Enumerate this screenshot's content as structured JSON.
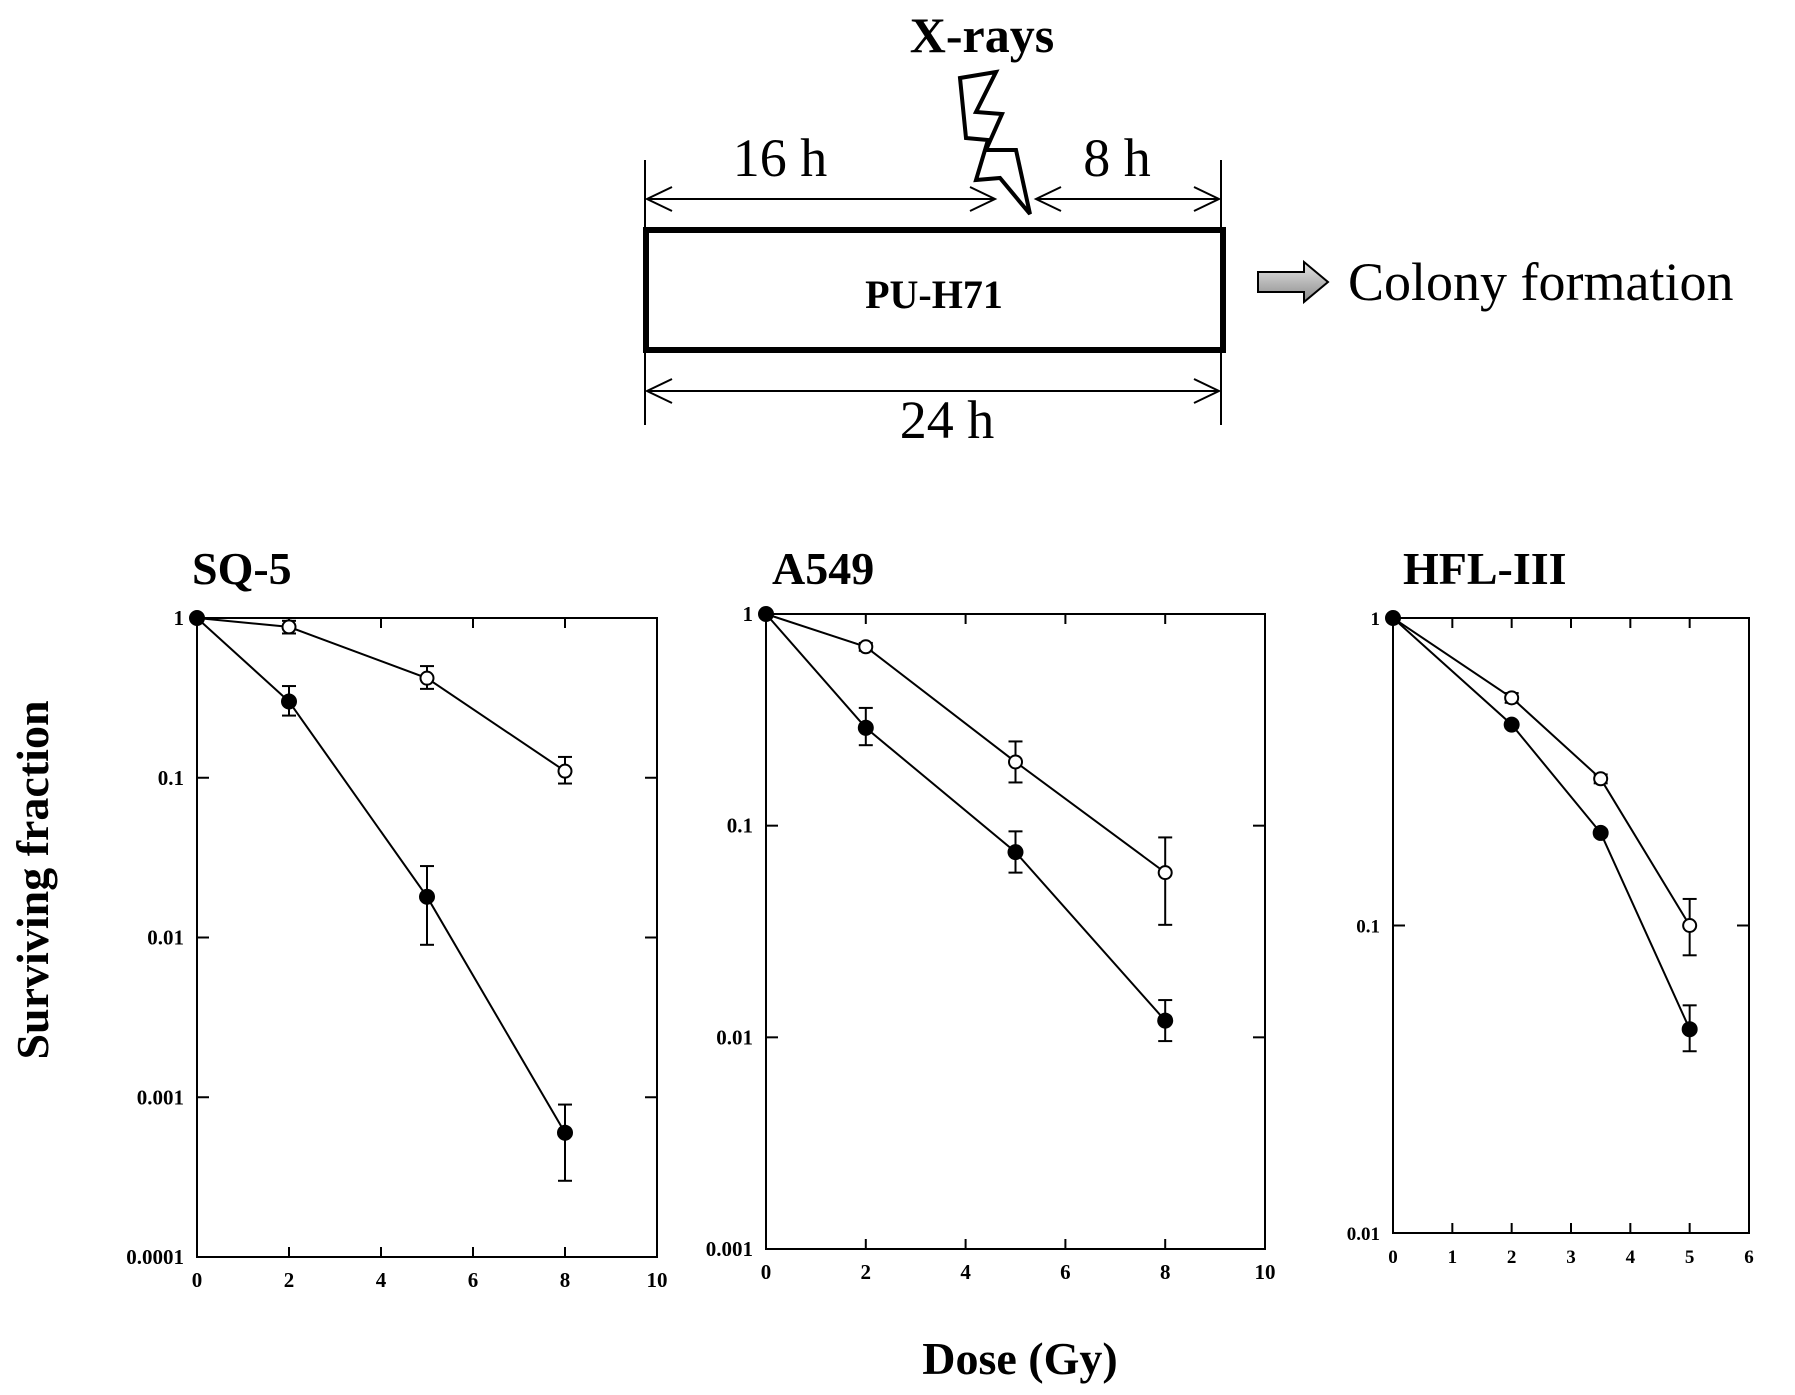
{
  "schematic": {
    "xrays_label": "X-rays",
    "pre_label": "16 h",
    "post_label": "8 h",
    "drug_label": "PU-H71",
    "total_label": "24 h",
    "outcome_label": "Colony formation"
  },
  "figure": {
    "ylabel": "Surviving fraction",
    "xlabel": "Dose (Gy)"
  },
  "chart_data": [
    {
      "type": "scatter",
      "title": "SQ-5",
      "xlabel": "Dose (Gy)",
      "ylabel": "Surviving fraction",
      "yscale": "log",
      "xlim": [
        0,
        10
      ],
      "ylim": [
        0.0001,
        1
      ],
      "xticks": [
        "0",
        "2",
        "4",
        "6",
        "8",
        "10"
      ],
      "yticks": [
        "1",
        "0.1",
        "0.01",
        "0.001",
        "0.0001"
      ],
      "series": [
        {
          "marker": "open-circle",
          "x": [
            0,
            2,
            5,
            8
          ],
          "y": [
            1,
            0.88,
            0.42,
            0.11
          ],
          "err_lo": [
            1,
            0.8,
            0.36,
            0.092
          ],
          "err_hi": [
            1,
            0.96,
            0.5,
            0.135
          ]
        },
        {
          "marker": "filled-circle",
          "x": [
            0,
            2,
            5,
            8
          ],
          "y": [
            1,
            0.3,
            0.018,
            0.0006
          ],
          "err_lo": [
            1,
            0.245,
            0.009,
            0.0003
          ],
          "err_hi": [
            1,
            0.375,
            0.028,
            0.0009
          ]
        }
      ]
    },
    {
      "type": "scatter",
      "title": "A549",
      "xlabel": "Dose (Gy)",
      "ylabel": "Surviving fraction",
      "yscale": "log",
      "xlim": [
        0,
        10
      ],
      "ylim": [
        0.001,
        1
      ],
      "xticks": [
        "0",
        "2",
        "4",
        "6",
        "8",
        "10"
      ],
      "yticks": [
        "1",
        "0.1",
        "0.01",
        "0.001"
      ],
      "series": [
        {
          "marker": "open-circle",
          "x": [
            0,
            2,
            5,
            8
          ],
          "y": [
            1,
            0.7,
            0.2,
            0.06
          ],
          "err_lo": [
            1,
            0.67,
            0.16,
            0.034
          ],
          "err_hi": [
            1,
            0.73,
            0.25,
            0.088
          ]
        },
        {
          "marker": "filled-circle",
          "x": [
            0,
            2,
            5,
            8
          ],
          "y": [
            1,
            0.29,
            0.075,
            0.012
          ],
          "err_lo": [
            1,
            0.24,
            0.06,
            0.0096
          ],
          "err_hi": [
            1,
            0.36,
            0.094,
            0.015
          ]
        }
      ]
    },
    {
      "type": "scatter",
      "title": "HFL-III",
      "xlabel": "Dose (Gy)",
      "ylabel": "Surviving fraction",
      "yscale": "log",
      "xlim": [
        0,
        6
      ],
      "ylim": [
        0.01,
        1
      ],
      "xticks": [
        "0",
        "1",
        "2",
        "3",
        "4",
        "5",
        "6"
      ],
      "yticks": [
        "1",
        "0.1",
        "0.01"
      ],
      "series": [
        {
          "marker": "open-circle",
          "x": [
            0,
            2,
            3.5,
            5
          ],
          "y": [
            1,
            0.55,
            0.3,
            0.1
          ],
          "err_lo": [
            1,
            0.53,
            0.29,
            0.08
          ],
          "err_hi": [
            1,
            0.57,
            0.31,
            0.122
          ]
        },
        {
          "marker": "filled-circle",
          "x": [
            0,
            2,
            3.5,
            5
          ],
          "y": [
            1,
            0.45,
            0.2,
            0.046
          ],
          "err_lo": [
            1,
            0.44,
            0.195,
            0.039
          ],
          "err_hi": [
            1,
            0.46,
            0.205,
            0.055
          ]
        }
      ]
    }
  ]
}
